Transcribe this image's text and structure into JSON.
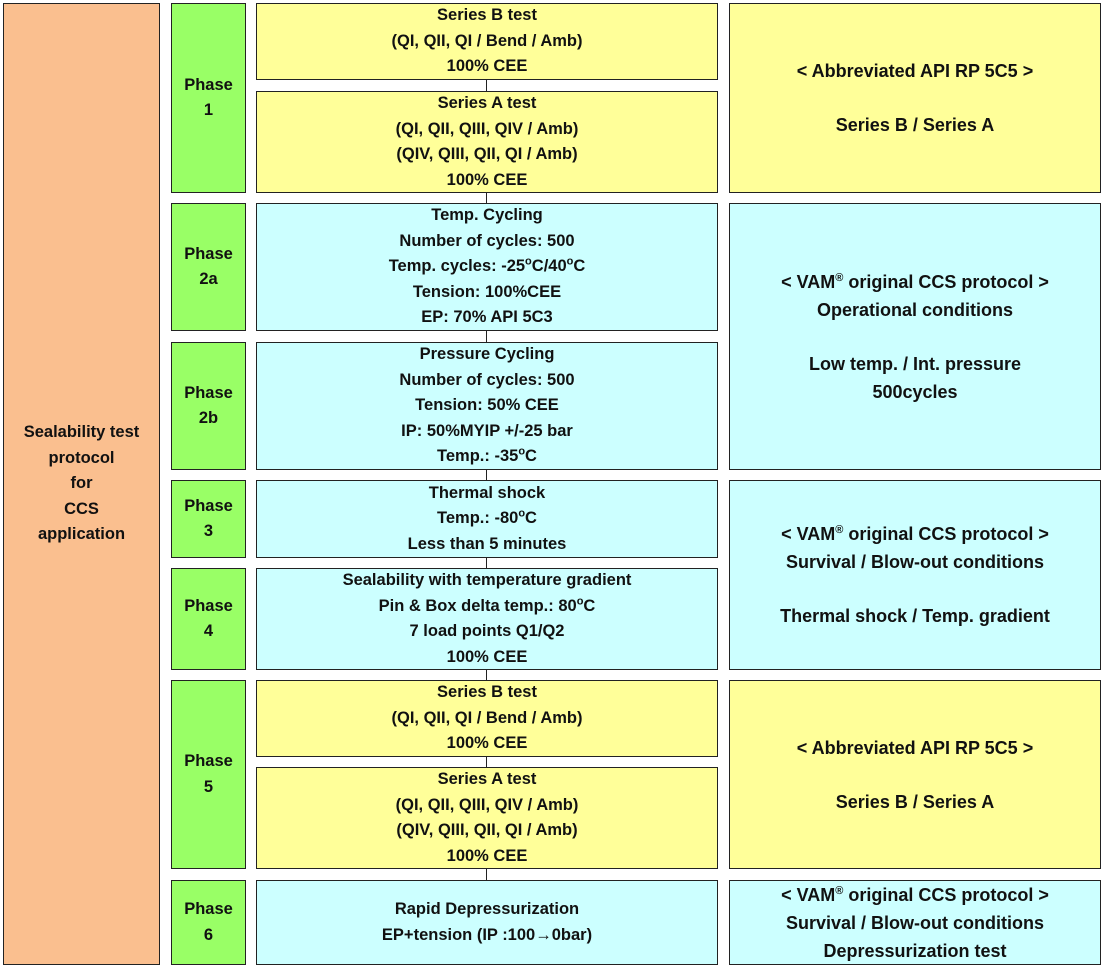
{
  "left_label": [
    "Sealability test",
    "protocol",
    "for",
    "CCS",
    "application"
  ],
  "phases": [
    [
      "Phase",
      "1"
    ],
    [
      "Phase",
      "2a"
    ],
    [
      "Phase",
      "2b"
    ],
    [
      "Phase",
      "3"
    ],
    [
      "Phase",
      "4"
    ],
    [
      "Phase",
      "5"
    ],
    [
      "Phase",
      "6"
    ]
  ],
  "tests": [
    [
      [
        "Series B test"
      ],
      [
        "(QI, QII, QI / Bend / Amb)"
      ],
      [
        "100% CEE"
      ]
    ],
    [
      [
        "Series A test"
      ],
      [
        "(QI, QII, QIII, QIV / Amb)"
      ],
      [
        "(QIV, QIII, QII, QI / Amb)"
      ],
      [
        "100% CEE"
      ]
    ],
    [
      [
        "Temp. Cycling"
      ],
      [
        "Number of cycles: 500"
      ],
      [
        "Temp. cycles: -25",
        "o",
        "C/40",
        "o",
        "C"
      ],
      [
        "Tension: 100%CEE"
      ],
      [
        "EP: 70% API 5C3"
      ]
    ],
    [
      [
        "Pressure Cycling"
      ],
      [
        "Number of cycles: 500"
      ],
      [
        "Tension: 50% CEE"
      ],
      [
        "IP: 50%MYIP +/-25 bar"
      ],
      [
        "Temp.: -35",
        "o",
        "C"
      ]
    ],
    [
      [
        "Thermal shock"
      ],
      [
        "Temp.: -80",
        "o",
        "C"
      ],
      [
        "Less than 5 minutes"
      ]
    ],
    [
      [
        "Sealability with temperature gradient"
      ],
      [
        "Pin & Box delta temp.: 80",
        "o",
        "C"
      ],
      [
        "7 load points Q1/Q2"
      ],
      [
        "100% CEE"
      ]
    ],
    [
      [
        "Series B test"
      ],
      [
        "(QI, QII, QI / Bend / Amb)"
      ],
      [
        "100% CEE"
      ]
    ],
    [
      [
        "Series A test"
      ],
      [
        "(QI, QII, QIII, QIV / Amb)"
      ],
      [
        "(QIV, QIII, QII, QI / Amb)"
      ],
      [
        "100% CEE"
      ]
    ],
    [
      [
        "Rapid Depressurization"
      ],
      [
        "EP+tension (IP :100→0bar)"
      ]
    ]
  ],
  "notes": [
    [
      [
        [
          "< Abbreviated API RP 5C5 >"
        ]
      ],
      [
        [
          "Series B / Series A"
        ]
      ]
    ],
    [
      [
        [
          "< VAM",
          "®",
          " original CCS protocol >"
        ],
        [
          "Operational conditions"
        ]
      ],
      [
        [
          "Low temp. / Int. pressure"
        ],
        [
          "500cycles"
        ]
      ]
    ],
    [
      [
        [
          "< VAM",
          "®",
          " original CCS protocol >"
        ],
        [
          "Survival / Blow-out conditions"
        ]
      ],
      [
        [
          "Thermal shock / Temp. gradient"
        ]
      ]
    ],
    [
      [
        [
          "< Abbreviated API RP 5C5 >"
        ]
      ],
      [
        [
          "Series B / Series A"
        ]
      ]
    ],
    [
      [
        [
          "< VAM",
          "®",
          " original CCS protocol >"
        ],
        [
          "Survival / Blow-out conditions"
        ],
        [
          "Depressurization test"
        ]
      ]
    ]
  ]
}
